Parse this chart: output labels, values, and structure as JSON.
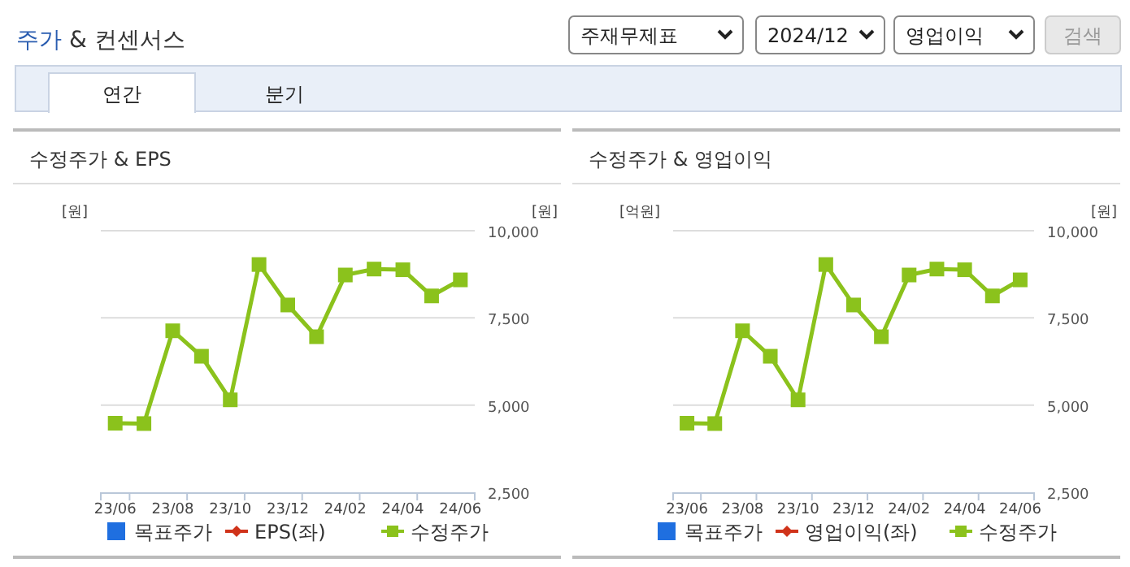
{
  "chart_data": [
    {
      "type": "other",
      "title": "주가 & 컨센서스",
      "annotations": [
        "주재무제표",
        "2024/12",
        "영업이익",
        "검색",
        "연간",
        "분기"
      ]
    },
    {
      "type": "line",
      "title": "수정주가 & EPS",
      "ylabel": "[원]",
      "y2label": "[원]",
      "categories": [
        "23/06",
        null,
        "23/08",
        null,
        "23/10",
        null,
        "23/12",
        null,
        "24/02",
        null,
        "24/04",
        null,
        "24/06"
      ],
      "y2lim": [
        2500,
        10000
      ],
      "y2ticks": [
        {
          "value": 2500,
          "label": "2,500"
        },
        {
          "value": 5000,
          "label": "5,000"
        },
        {
          "value": 7500,
          "label": "7,500"
        },
        {
          "value": 10000,
          "label": "10,000"
        }
      ],
      "grid": "y",
      "legend": "bottom",
      "series": [
        {
          "name": "목표주가",
          "type": "scatter",
          "marker": "square",
          "color": "#1f6fe0",
          "values": [
            null,
            null,
            null,
            null,
            null,
            null,
            null,
            null,
            null,
            null,
            null,
            null,
            null
          ]
        },
        {
          "name": "EPS(좌)",
          "type": "line",
          "marker": "diamond",
          "color": "#d0331a",
          "values": [
            null,
            null,
            null,
            null,
            null,
            null,
            null,
            null,
            null,
            null,
            null,
            null,
            null
          ]
        },
        {
          "name": "수정주가",
          "type": "line",
          "marker": "square",
          "axis": "y2",
          "color": "#8bc21c",
          "values": [
            4480,
            4470,
            7130,
            6400,
            5150,
            9030,
            7870,
            6960,
            8730,
            8900,
            8880,
            8130,
            8590
          ]
        }
      ]
    },
    {
      "type": "line",
      "title": "수정주가 & 영업이익",
      "ylabel": "[억원]",
      "y2label": "[원]",
      "categories": [
        "23/06",
        null,
        "23/08",
        null,
        "23/10",
        null,
        "23/12",
        null,
        "24/02",
        null,
        "24/04",
        null,
        "24/06"
      ],
      "y2lim": [
        2500,
        10000
      ],
      "y2ticks": [
        {
          "value": 2500,
          "label": "2,500"
        },
        {
          "value": 5000,
          "label": "5,000"
        },
        {
          "value": 7500,
          "label": "7,500"
        },
        {
          "value": 10000,
          "label": "10,000"
        }
      ],
      "grid": "y",
      "legend": "bottom",
      "series": [
        {
          "name": "목표주가",
          "type": "scatter",
          "marker": "square",
          "color": "#1f6fe0",
          "values": [
            null,
            null,
            null,
            null,
            null,
            null,
            null,
            null,
            null,
            null,
            null,
            null,
            null
          ]
        },
        {
          "name": "영업이익(좌)",
          "type": "line",
          "marker": "diamond",
          "color": "#d0331a",
          "values": [
            null,
            null,
            null,
            null,
            null,
            null,
            null,
            null,
            null,
            null,
            null,
            null,
            null
          ]
        },
        {
          "name": "수정주가",
          "type": "line",
          "marker": "square",
          "axis": "y2",
          "color": "#8bc21c",
          "values": [
            4480,
            4470,
            7130,
            6400,
            5150,
            9030,
            7870,
            6960,
            8730,
            8900,
            8880,
            8130,
            8590
          ]
        }
      ]
    }
  ]
}
